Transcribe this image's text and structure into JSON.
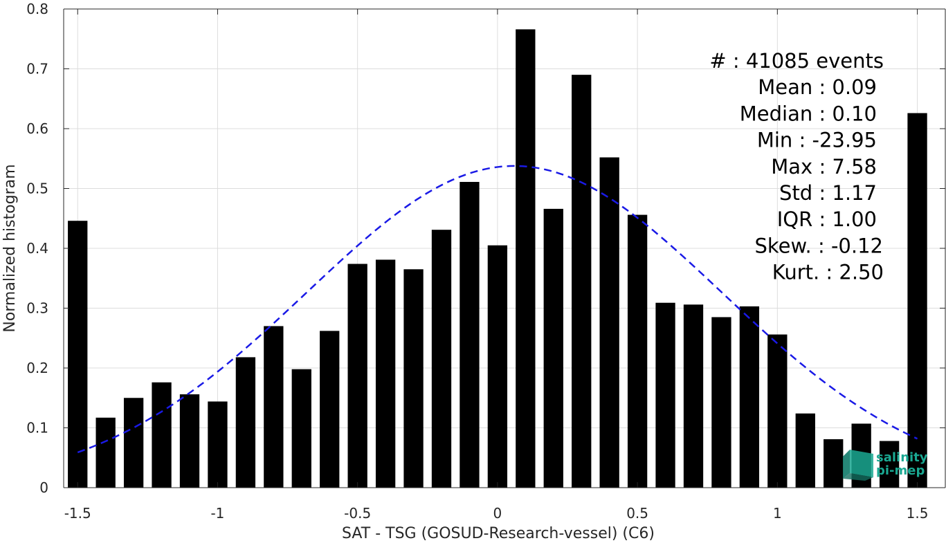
{
  "chart_data": {
    "type": "bar",
    "xlabel": "SAT - TSG (GOSUD-Research-vessel) (C6)",
    "ylabel": "Normalized histogram",
    "xlim": [
      -1.55,
      1.6
    ],
    "ylim": [
      0,
      0.8
    ],
    "x_ticks": [
      -1.5,
      -1,
      -0.5,
      0,
      0.5,
      1,
      1.5
    ],
    "x_tick_labels": [
      "-1.5",
      "-1",
      "-0.5",
      "0",
      "0.5",
      "1",
      "1.5"
    ],
    "y_ticks": [
      0,
      0.1,
      0.2,
      0.3,
      0.4,
      0.5,
      0.6,
      0.7,
      0.8
    ],
    "y_tick_labels": [
      "0",
      "0.1",
      "0.2",
      "0.3",
      "0.4",
      "0.5",
      "0.6",
      "0.7",
      "0.8"
    ],
    "grid": true,
    "bar_color": "#000000",
    "bar_width": 0.07,
    "x": [
      -1.5,
      -1.4,
      -1.3,
      -1.2,
      -1.1,
      -1.0,
      -0.9,
      -0.8,
      -0.7,
      -0.6,
      -0.5,
      -0.4,
      -0.3,
      -0.2,
      -0.1,
      0.0,
      0.1,
      0.2,
      0.3,
      0.4,
      0.5,
      0.6,
      0.7,
      0.8,
      0.9,
      1.0,
      1.1,
      1.2,
      1.3,
      1.4,
      1.5
    ],
    "values": [
      0.446,
      0.117,
      0.15,
      0.176,
      0.156,
      0.144,
      0.218,
      0.27,
      0.198,
      0.262,
      0.374,
      0.381,
      0.365,
      0.431,
      0.511,
      0.405,
      0.766,
      0.466,
      0.69,
      0.552,
      0.456,
      0.309,
      0.306,
      0.285,
      0.303,
      0.256,
      0.124,
      0.081,
      0.107,
      0.078,
      0.626
    ],
    "fit_curve": {
      "style": "dashed",
      "color": "#1a1ae6",
      "mean": 0.06,
      "std": 0.742,
      "x_range": [
        -1.5,
        1.5
      ]
    },
    "annotations": [
      "#  : 41085 events",
      "Mean : 0.09",
      "Median : 0.10",
      "Min : -23.95",
      "Max : 7.58",
      "Std : 1.17",
      "IQR : 1.00",
      "Skew. : -0.12",
      "Kurt. : 2.50"
    ]
  },
  "logo": {
    "line1": "salinity",
    "line2": "pi-mep",
    "color": "#1aa892"
  }
}
